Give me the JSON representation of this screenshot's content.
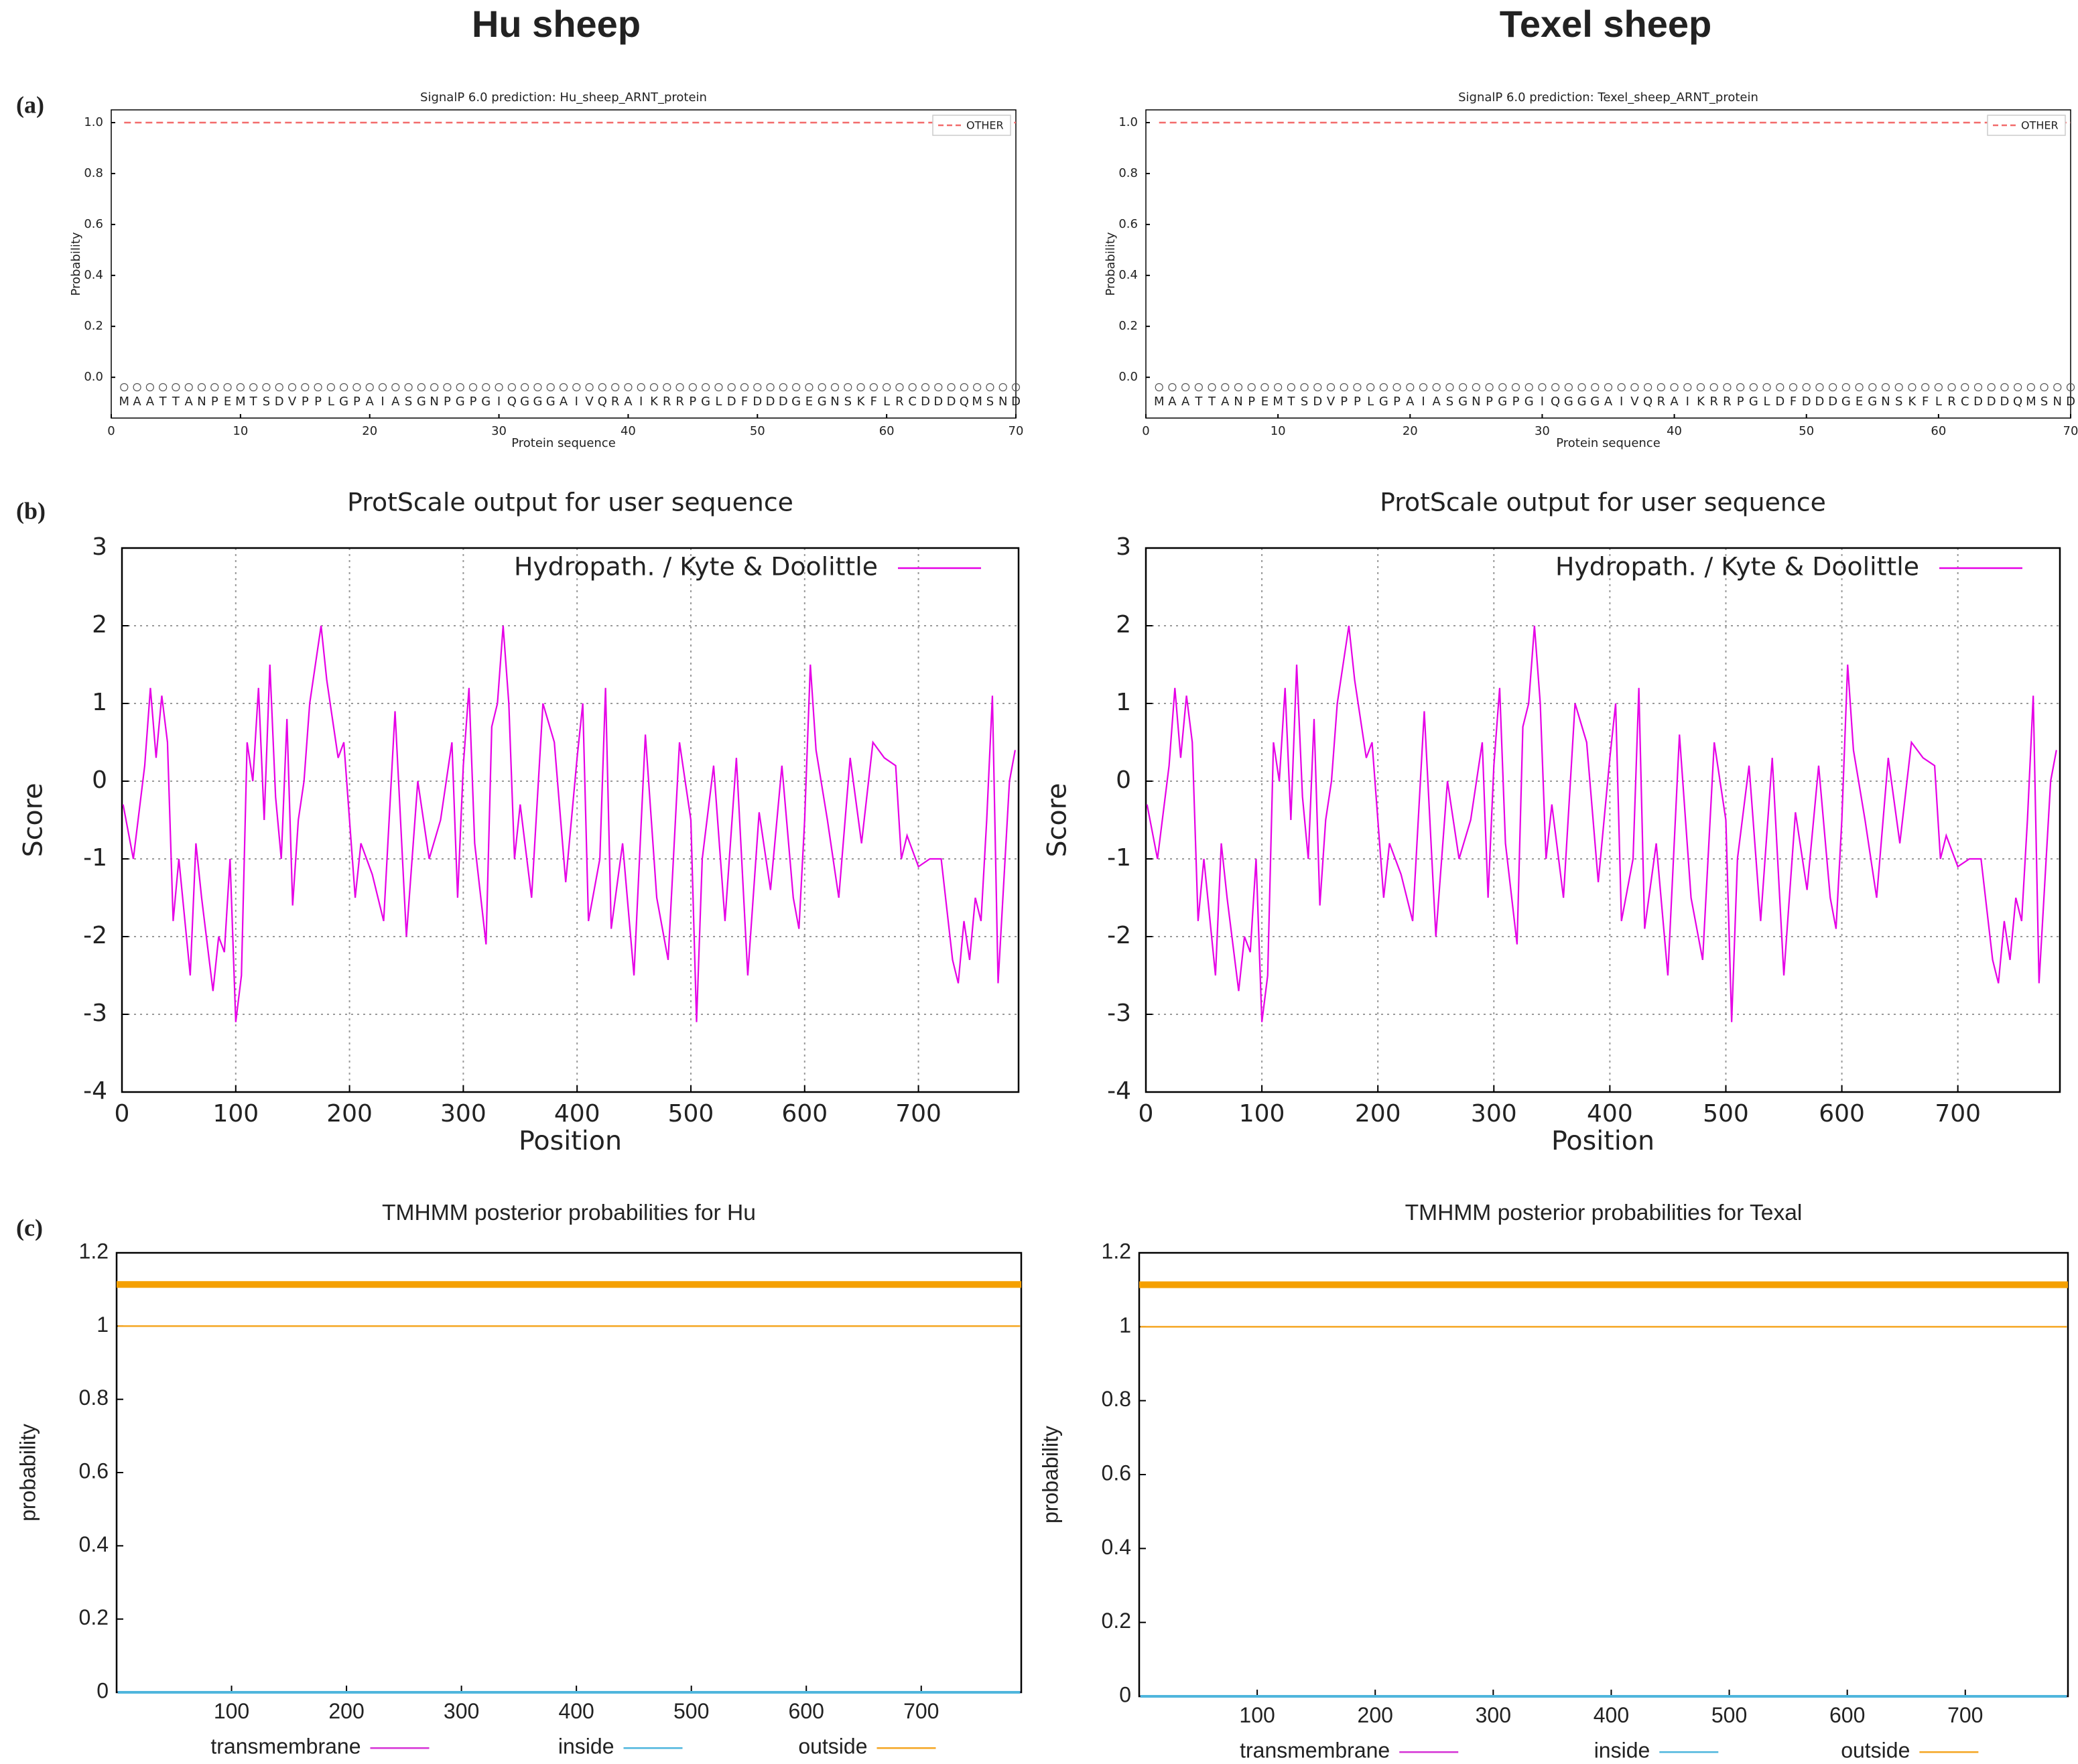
{
  "columns": [
    "Hu sheep",
    "Texel sheep"
  ],
  "panels": [
    "(a)",
    "(b)",
    "(c)"
  ],
  "chart_data": [
    {
      "type": "line",
      "title": "SignalP 6.0 prediction: Hu_sheep_ARNT_protein",
      "xlabel": "Protein sequence",
      "ylabel": "Probability",
      "sequence": "MAATTANPEMTSDVPPLGPAIASGNPGPGIQGGGAIVQRAIKRRPGLDFDDDGEGNSKFLRCDDDQMSND",
      "x": [
        1,
        2,
        3,
        4,
        5,
        6,
        7,
        8,
        9,
        10,
        11,
        12,
        13,
        14,
        15,
        16,
        17,
        18,
        19,
        20,
        21,
        22,
        23,
        24,
        25,
        26,
        27,
        28,
        29,
        30,
        31,
        32,
        33,
        34,
        35,
        36,
        37,
        38,
        39,
        40,
        41,
        42,
        43,
        44,
        45,
        46,
        47,
        48,
        49,
        50,
        51,
        52,
        53,
        54,
        55,
        56,
        57,
        58,
        59,
        60,
        61,
        62,
        63,
        64,
        65,
        66,
        67,
        68,
        69,
        70
      ],
      "series": [
        {
          "name": "OTHER",
          "color": "#f26b6b",
          "linestyle": "dashed",
          "values": [
            1,
            1,
            1,
            1,
            1,
            1,
            1,
            1,
            1,
            1,
            1,
            1,
            1,
            1,
            1,
            1,
            1,
            1,
            1,
            1,
            1,
            1,
            1,
            1,
            1,
            1,
            1,
            1,
            1,
            1,
            1,
            1,
            1,
            1,
            1,
            1,
            1,
            1,
            1,
            1,
            1,
            1,
            1,
            1,
            1,
            1,
            1,
            1,
            1,
            1,
            1,
            1,
            1,
            1,
            1,
            1,
            1,
            1,
            1,
            1,
            1,
            1,
            1,
            1,
            1,
            1,
            1,
            1,
            1,
            1
          ]
        }
      ],
      "xlim": [
        0,
        70
      ],
      "xticks": [
        0,
        10,
        20,
        30,
        40,
        50,
        60,
        70
      ],
      "ylim": [
        -0.16,
        1.05
      ],
      "yticks": [
        {
          "value": 0,
          "label": "0.0"
        },
        0.2,
        0.4,
        0.6,
        0.8,
        {
          "value": 1,
          "label": "1.0"
        }
      ],
      "grid": false,
      "legend": "upper right"
    },
    {
      "type": "line",
      "title": "SignalP 6.0 prediction: Texel_sheep_ARNT_protein",
      "xlabel": "Protein sequence",
      "ylabel": "Probability",
      "sequence": "MAATTANPEMTSDVPPLGPAIASGNPGPGIQGGGAIVQRAIKRRPGLDFDDDGEGNSKFLRCDDDQMSND",
      "x": [
        1,
        2,
        3,
        4,
        5,
        6,
        7,
        8,
        9,
        10,
        11,
        12,
        13,
        14,
        15,
        16,
        17,
        18,
        19,
        20,
        21,
        22,
        23,
        24,
        25,
        26,
        27,
        28,
        29,
        30,
        31,
        32,
        33,
        34,
        35,
        36,
        37,
        38,
        39,
        40,
        41,
        42,
        43,
        44,
        45,
        46,
        47,
        48,
        49,
        50,
        51,
        52,
        53,
        54,
        55,
        56,
        57,
        58,
        59,
        60,
        61,
        62,
        63,
        64,
        65,
        66,
        67,
        68,
        69,
        70
      ],
      "series": [
        {
          "name": "OTHER",
          "color": "#f26b6b",
          "linestyle": "dashed",
          "values": [
            1,
            1,
            1,
            1,
            1,
            1,
            1,
            1,
            1,
            1,
            1,
            1,
            1,
            1,
            1,
            1,
            1,
            1,
            1,
            1,
            1,
            1,
            1,
            1,
            1,
            1,
            1,
            1,
            1,
            1,
            1,
            1,
            1,
            1,
            1,
            1,
            1,
            1,
            1,
            1,
            1,
            1,
            1,
            1,
            1,
            1,
            1,
            1,
            1,
            1,
            1,
            1,
            1,
            1,
            1,
            1,
            1,
            1,
            1,
            1,
            1,
            1,
            1,
            1,
            1,
            1,
            1,
            1,
            1,
            1
          ]
        }
      ],
      "xlim": [
        0,
        70
      ],
      "xticks": [
        0,
        10,
        20,
        30,
        40,
        50,
        60,
        70
      ],
      "ylim": [
        -0.16,
        1.05
      ],
      "yticks": [
        {
          "value": 0,
          "label": "0.0"
        },
        0.2,
        0.4,
        0.6,
        0.8,
        {
          "value": 1,
          "label": "1.0"
        }
      ],
      "grid": false,
      "legend": "upper right"
    },
    {
      "type": "line",
      "title": "ProtScale output for user sequence",
      "xlabel": "Position",
      "ylabel": "Score",
      "x": [
        1,
        10,
        20,
        25,
        30,
        35,
        40,
        45,
        50,
        60,
        65,
        70,
        80,
        85,
        90,
        95,
        100,
        105,
        110,
        115,
        120,
        125,
        130,
        135,
        140,
        145,
        150,
        155,
        160,
        165,
        170,
        175,
        180,
        185,
        190,
        195,
        200,
        205,
        210,
        220,
        230,
        240,
        250,
        260,
        270,
        280,
        290,
        295,
        300,
        305,
        310,
        320,
        325,
        330,
        335,
        340,
        345,
        350,
        360,
        370,
        380,
        390,
        400,
        405,
        410,
        420,
        425,
        430,
        440,
        450,
        460,
        470,
        480,
        490,
        500,
        505,
        510,
        520,
        530,
        540,
        550,
        560,
        570,
        580,
        590,
        595,
        600,
        605,
        610,
        620,
        630,
        640,
        650,
        660,
        670,
        680,
        685,
        690,
        700,
        710,
        720,
        730,
        735,
        740,
        745,
        750,
        755,
        760,
        765,
        770,
        780,
        785
      ],
      "series": [
        {
          "name": "Hydropath. / Kyte & Doolittle",
          "color": "#e600e6",
          "linestyle": "solid",
          "values": [
            -0.3,
            -1.0,
            0.2,
            1.2,
            0.3,
            1.1,
            0.5,
            -1.8,
            -1.0,
            -2.5,
            -0.8,
            -1.5,
            -2.7,
            -2.0,
            -2.2,
            -1.0,
            -3.1,
            -2.5,
            0.5,
            0.0,
            1.2,
            -0.5,
            1.5,
            -0.2,
            -1.0,
            0.8,
            -1.6,
            -0.5,
            0.0,
            1.0,
            1.5,
            2.0,
            1.3,
            0.8,
            0.3,
            0.5,
            -0.5,
            -1.5,
            -0.8,
            -1.2,
            -1.8,
            0.9,
            -2.0,
            0.0,
            -1.0,
            -0.5,
            0.5,
            -1.5,
            0.2,
            1.2,
            -0.8,
            -2.1,
            0.7,
            1.0,
            2.0,
            1.0,
            -1.0,
            -0.3,
            -1.5,
            1.0,
            0.5,
            -1.3,
            0.3,
            1.0,
            -1.8,
            -1.0,
            1.2,
            -1.9,
            -0.8,
            -2.5,
            0.6,
            -1.5,
            -2.3,
            0.5,
            -0.5,
            -3.1,
            -1.0,
            0.2,
            -1.8,
            0.3,
            -2.5,
            -0.4,
            -1.4,
            0.2,
            -1.5,
            -1.9,
            -0.5,
            1.5,
            0.4,
            -0.5,
            -1.5,
            0.3,
            -0.8,
            0.5,
            0.3,
            0.2,
            -1.0,
            -0.7,
            -1.1,
            -1.0,
            -1.0,
            -2.3,
            -2.6,
            -1.8,
            -2.3,
            -1.5,
            -1.8,
            -0.5,
            1.1,
            -2.6,
            0.0,
            0.4
          ]
        }
      ],
      "xlim": [
        0,
        788
      ],
      "xticks": [
        0,
        100,
        200,
        300,
        400,
        500,
        600,
        700
      ],
      "ylim": [
        -4,
        3
      ],
      "yticks": [
        -4,
        -3,
        -2,
        -1,
        0,
        1,
        2,
        3
      ],
      "grid": true,
      "legend": "upper right"
    },
    {
      "type": "line",
      "title": "ProtScale output for user sequence",
      "xlabel": "Position",
      "ylabel": "Score",
      "x": [
        1,
        10,
        20,
        25,
        30,
        35,
        40,
        45,
        50,
        60,
        65,
        70,
        80,
        85,
        90,
        95,
        100,
        105,
        110,
        115,
        120,
        125,
        130,
        135,
        140,
        145,
        150,
        155,
        160,
        165,
        170,
        175,
        180,
        185,
        190,
        195,
        200,
        205,
        210,
        220,
        230,
        240,
        250,
        260,
        270,
        280,
        290,
        295,
        300,
        305,
        310,
        320,
        325,
        330,
        335,
        340,
        345,
        350,
        360,
        370,
        380,
        390,
        400,
        405,
        410,
        420,
        425,
        430,
        440,
        450,
        460,
        470,
        480,
        490,
        500,
        505,
        510,
        520,
        530,
        540,
        550,
        560,
        570,
        580,
        590,
        595,
        600,
        605,
        610,
        620,
        630,
        640,
        650,
        660,
        670,
        680,
        685,
        690,
        700,
        710,
        720,
        730,
        735,
        740,
        745,
        750,
        755,
        760,
        765,
        770,
        780,
        785
      ],
      "series": [
        {
          "name": "Hydropath. / Kyte & Doolittle",
          "color": "#e600e6",
          "linestyle": "solid",
          "values": [
            -0.3,
            -1.0,
            0.2,
            1.2,
            0.3,
            1.1,
            0.5,
            -1.8,
            -1.0,
            -2.5,
            -0.8,
            -1.5,
            -2.7,
            -2.0,
            -2.2,
            -1.0,
            -3.1,
            -2.5,
            0.5,
            0.0,
            1.2,
            -0.5,
            1.5,
            -0.2,
            -1.0,
            0.8,
            -1.6,
            -0.5,
            0.0,
            1.0,
            1.5,
            2.0,
            1.3,
            0.8,
            0.3,
            0.5,
            -0.5,
            -1.5,
            -0.8,
            -1.2,
            -1.8,
            0.9,
            -2.0,
            0.0,
            -1.0,
            -0.5,
            0.5,
            -1.5,
            0.2,
            1.2,
            -0.8,
            -2.1,
            0.7,
            1.0,
            2.0,
            1.0,
            -1.0,
            -0.3,
            -1.5,
            1.0,
            0.5,
            -1.3,
            0.3,
            1.0,
            -1.8,
            -1.0,
            1.2,
            -1.9,
            -0.8,
            -2.5,
            0.6,
            -1.5,
            -2.3,
            0.5,
            -0.5,
            -3.1,
            -1.0,
            0.2,
            -1.8,
            0.3,
            -2.5,
            -0.4,
            -1.4,
            0.2,
            -1.5,
            -1.9,
            -0.5,
            1.5,
            0.4,
            -0.5,
            -1.5,
            0.3,
            -0.8,
            0.5,
            0.3,
            0.2,
            -1.0,
            -0.7,
            -1.1,
            -1.0,
            -1.0,
            -2.3,
            -2.6,
            -1.8,
            -2.3,
            -1.5,
            -1.8,
            -0.5,
            1.1,
            -2.6,
            0.0,
            0.4
          ]
        }
      ],
      "xlim": [
        0,
        788
      ],
      "xticks": [
        0,
        100,
        200,
        300,
        400,
        500,
        600,
        700
      ],
      "ylim": [
        -4,
        3
      ],
      "yticks": [
        -4,
        -3,
        -2,
        -1,
        0,
        1,
        2,
        3
      ],
      "grid": true,
      "legend": "upper right"
    },
    {
      "type": "line",
      "title": "TMHMM posterior probabilities for Hu",
      "ylabel": "probability",
      "x": [
        1,
        786
      ],
      "series": [
        {
          "name": "transmembrane",
          "color": "#d633d6",
          "linestyle": "solid",
          "values": [
            0,
            0
          ]
        },
        {
          "name": "inside",
          "color": "#4fb6dd",
          "linestyle": "solid",
          "values": [
            0,
            0
          ]
        },
        {
          "name": "outside",
          "color": "#f5a623",
          "linestyle": "solid",
          "values": [
            1,
            1
          ]
        }
      ],
      "xlim": [
        0,
        787
      ],
      "xticks": [
        100,
        200,
        300,
        400,
        500,
        600,
        700
      ],
      "ylim": [
        0,
        1.2
      ],
      "yticks": [
        0,
        0.2,
        0.4,
        0.6,
        0.8,
        1,
        1.2
      ],
      "grid": false,
      "legend": "bottom"
    },
    {
      "type": "line",
      "title": "TMHMM posterior probabilities for Texal",
      "ylabel": "probability",
      "x": [
        1,
        786
      ],
      "series": [
        {
          "name": "transmembrane",
          "color": "#d633d6",
          "linestyle": "solid",
          "values": [
            0,
            0
          ]
        },
        {
          "name": "inside",
          "color": "#4fb6dd",
          "linestyle": "solid",
          "values": [
            0,
            0
          ]
        },
        {
          "name": "outside",
          "color": "#f5a623",
          "linestyle": "solid",
          "values": [
            1,
            1
          ]
        }
      ],
      "xlim": [
        0,
        787
      ],
      "xticks": [
        100,
        200,
        300,
        400,
        500,
        600,
        700
      ],
      "ylim": [
        0,
        1.2
      ],
      "yticks": [
        0,
        0.2,
        0.4,
        0.6,
        0.8,
        1,
        1.2
      ],
      "grid": false,
      "legend": "bottom"
    }
  ]
}
